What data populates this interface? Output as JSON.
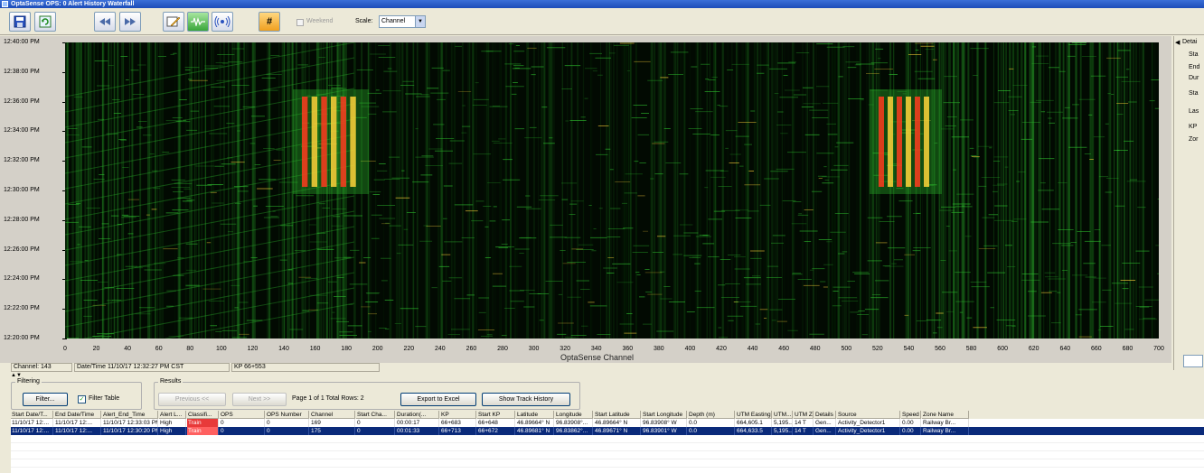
{
  "window": {
    "title": "OptaSense OPS: 0 Alert History Waterfall"
  },
  "toolbar": {
    "buttons": [
      "save-icon",
      "refresh-icon",
      "rewind-icon",
      "fast-forward-icon",
      "edit-icon",
      "waveform-icon",
      "audio-icon",
      "hash-icon"
    ],
    "hash_glyph": "#",
    "context_label": "Weekend",
    "scale_label": "Scale:",
    "scale_value": "Channel"
  },
  "waterfall": {
    "y_ticks": [
      "12:40:00 PM",
      "12:38:00 PM",
      "12:36:00 PM",
      "12:34:00 PM",
      "12:32:00 PM",
      "12:30:00 PM",
      "12:28:00 PM",
      "12:26:00 PM",
      "12:24:00 PM",
      "12:22:00 PM",
      "12:20:00 PM"
    ],
    "x_ticks": [
      "0",
      "20",
      "40",
      "60",
      "80",
      "100",
      "120",
      "140",
      "160",
      "180",
      "200",
      "220",
      "240",
      "260",
      "280",
      "300",
      "320",
      "340",
      "360",
      "380",
      "400",
      "420",
      "440",
      "460",
      "480",
      "500",
      "520",
      "540",
      "560",
      "580",
      "600",
      "620",
      "640",
      "660",
      "680",
      "700"
    ],
    "x_axis_label": "OptaSense Channel",
    "colors": {
      "background": "#020a02",
      "signal": "#2fbf2f",
      "hot": "#ff3b1f",
      "warm": "#ffd23a"
    }
  },
  "right_panel": {
    "title": "Detai",
    "items": [
      "Sta",
      "End",
      "Dur",
      "Sta",
      "Las",
      "KP",
      "Zor"
    ]
  },
  "status": {
    "channel": "Channel: 143",
    "datetime": "Date/Time 11/10/17 12:32:27 PM CST",
    "kp": "KP 66+553"
  },
  "filtering": {
    "title": "Filtering",
    "filter_button": "Filter...",
    "filter_table_label": "Filter Table",
    "filter_table_checked": "✓"
  },
  "results": {
    "title": "Results",
    "previous": "Previous <<",
    "next": "Next >>",
    "page_info": "Page 1 of 1  Total Rows: 2",
    "export": "Export to Excel",
    "history": "Show Track History"
  },
  "table": {
    "headers": [
      "Start Date/T...",
      "End Date/Time",
      "Alert_End_Time",
      "Alert L...",
      "Classifi...",
      "OPS",
      "OPS Number",
      "Channel",
      "Start Cha...",
      "Duration(...",
      "KP",
      "Start KP",
      "Latitude",
      "Longitude",
      "Start Latitude",
      "Start Longitude",
      "Depth (m)",
      "UTM Easting",
      "UTM...",
      "UTM Z...",
      "Details",
      "Source",
      "Speed",
      "Zone Name"
    ],
    "rows": [
      [
        "11/10/17 12:...",
        "11/10/17 12:...",
        "11/10/17 12:33:03 PM",
        "High",
        "Train",
        "0",
        "0",
        "169",
        "0",
        "00:00:17",
        "66+683",
        "66+648",
        "46.89664° N",
        "96.83908°...",
        "46.89664° N",
        "96.83908° W",
        "0.0",
        "664,605.1",
        "5,195...",
        "14 T",
        "Gen...",
        "Activity_Detector1",
        "0.00",
        "Railway Br..."
      ],
      [
        "11/10/17 12:...",
        "11/10/17 12:...",
        "11/10/17 12:30:20 PM",
        "High",
        "Train",
        "0",
        "0",
        "175",
        "0",
        "00:01:33",
        "66+713",
        "66+672",
        "46.89681° N",
        "96.83862°...",
        "46.89671° N",
        "96.83901° W",
        "0.0",
        "664,633.5",
        "5,195...",
        "14 T",
        "Gen...",
        "Activity_Detector1",
        "0.00",
        "Railway Br..."
      ]
    ]
  }
}
